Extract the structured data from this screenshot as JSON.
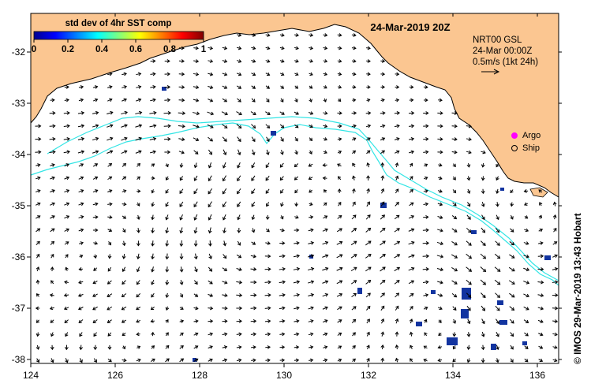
{
  "title": "24-Mar-2019 20Z",
  "colorbar": {
    "label": "std dev of 4hr SST comp",
    "ticks": [
      "0",
      "0.2",
      "0.4",
      "0.6",
      "0.8",
      "1"
    ]
  },
  "product": {
    "line1": "NRT00 GSL",
    "line2": "24-Mar 00:00Z",
    "line3": "0.5m/s (1kt 24h)"
  },
  "legend": {
    "argo": "Argo",
    "ship": "Ship"
  },
  "credit": "© IMOS 29-Mar-2019 13:43 Hobart",
  "axes": {
    "x_ticks": [
      "124",
      "126",
      "128",
      "130",
      "132",
      "134",
      "136"
    ],
    "y_ticks": [
      "-32",
      "-33",
      "-34",
      "-35",
      "-36",
      "-37",
      "-38"
    ]
  },
  "colors": {
    "land": "#fbc691",
    "contour": "#33e5e5",
    "argo": "#ff00ff"
  }
}
